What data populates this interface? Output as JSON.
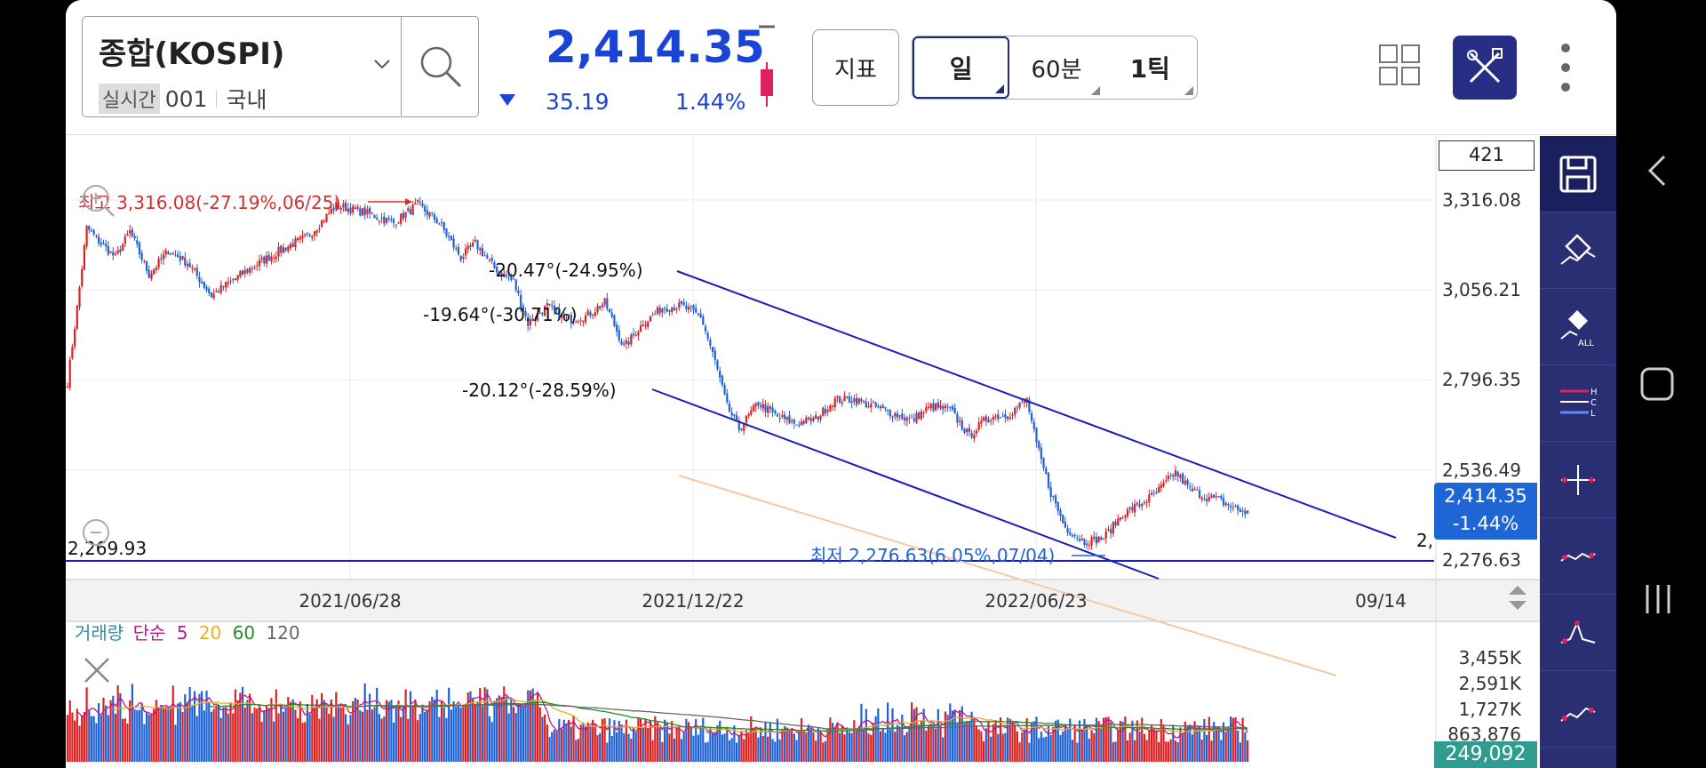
{
  "header": {
    "symbol_name": "종합(KOSPI)",
    "realtime_badge": "실시간",
    "symbol_code": "001",
    "market": "국내",
    "price": "2,414.35",
    "change": "35.19",
    "change_pct": "1.44%",
    "indicator_label": "지표",
    "periods": [
      {
        "label": "일",
        "active": true
      },
      {
        "label": "60분",
        "active": false
      },
      {
        "label": "1틱",
        "active": false
      }
    ]
  },
  "chart": {
    "count_box": "421",
    "y_ticks": [
      "3,316.08",
      "3,056.21",
      "2,796.35",
      "2,536.49",
      "2,276.63"
    ],
    "x_ticks": [
      "2021/06/28",
      "2021/12/22",
      "2022/06/23",
      "09/14"
    ],
    "current_price": "2,414.35",
    "current_change": "-1.44%",
    "high_label": "최고 3,316.08(-27.19%,06/25)",
    "low_label": "최저 2,276.63(6.05%,07/04)",
    "hline_label": "2,269.93",
    "hline_right_label": "2,",
    "angle_labels": [
      "-20.47°(-24.95%)",
      "-19.64°(-30.71%)",
      "-20.12°(-28.59%)"
    ],
    "colors": {
      "up": "#e0201f",
      "down": "#1f62d8",
      "channel": "#1b1fb8",
      "mid": "#f6c9a5"
    }
  },
  "volume": {
    "title": "거래량",
    "mode": "단순",
    "ma_periods": [
      "5",
      "20",
      "60",
      "120"
    ],
    "ma_colors": [
      "#c2188c",
      "#e2b020",
      "#238c2e",
      "#666666"
    ],
    "y_ticks": [
      "3,455K",
      "2,591K",
      "1,727K",
      "863,876"
    ],
    "current": "249,092"
  },
  "chart_data": {
    "type": "candlestick",
    "x_ticks": [
      "2021/06/28",
      "2021/12/22",
      "2022/06/23",
      "09/14"
    ],
    "y_ticks": [
      3316.08,
      3056.21,
      2796.35,
      2536.49,
      2276.63
    ],
    "high": {
      "value": 3316.08,
      "pct": -27.19,
      "date": "06/25"
    },
    "low": {
      "value": 2276.63,
      "pct": 6.05,
      "date": "07/04"
    },
    "last_close": 2414.35,
    "last_change_pct": -1.44,
    "horizontal_line": 2269.93,
    "path": [
      [
        0,
        2790
      ],
      [
        4,
        3005
      ],
      [
        8,
        3236
      ],
      [
        14,
        3190
      ],
      [
        20,
        3150
      ],
      [
        26,
        3225
      ],
      [
        34,
        3100
      ],
      [
        42,
        3170
      ],
      [
        50,
        3135
      ],
      [
        60,
        3040
      ],
      [
        70,
        3090
      ],
      [
        80,
        3135
      ],
      [
        90,
        3176
      ],
      [
        100,
        3210
      ],
      [
        112,
        3300
      ],
      [
        124,
        3280
      ],
      [
        136,
        3250
      ],
      [
        146,
        3303
      ],
      [
        155,
        3250
      ],
      [
        164,
        3150
      ],
      [
        170,
        3190
      ],
      [
        178,
        3120
      ],
      [
        186,
        3080
      ],
      [
        192,
        2960
      ],
      [
        200,
        3010
      ],
      [
        208,
        2970
      ],
      [
        216,
        2980
      ],
      [
        224,
        3020
      ],
      [
        232,
        2890
      ],
      [
        240,
        2960
      ],
      [
        248,
        3005
      ],
      [
        256,
        3010
      ],
      [
        264,
        2980
      ],
      [
        270,
        2850
      ],
      [
        275,
        2720
      ],
      [
        280,
        2655
      ],
      [
        288,
        2730
      ],
      [
        296,
        2690
      ],
      [
        304,
        2670
      ],
      [
        312,
        2685
      ],
      [
        320,
        2740
      ],
      [
        328,
        2740
      ],
      [
        336,
        2720
      ],
      [
        344,
        2700
      ],
      [
        352,
        2680
      ],
      [
        360,
        2720
      ],
      [
        368,
        2710
      ],
      [
        376,
        2635
      ],
      [
        384,
        2690
      ],
      [
        392,
        2695
      ],
      [
        400,
        2740
      ],
      [
        404,
        2610
      ],
      [
        410,
        2470
      ],
      [
        416,
        2370
      ],
      [
        424,
        2330
      ],
      [
        432,
        2340
      ],
      [
        440,
        2410
      ],
      [
        448,
        2440
      ],
      [
        454,
        2470
      ],
      [
        462,
        2530
      ],
      [
        468,
        2480
      ],
      [
        474,
        2460
      ],
      [
        480,
        2450
      ],
      [
        488,
        2420
      ],
      [
        492,
        2414
      ]
    ],
    "channel_lines": [
      {
        "label": "-20.47°(-24.95%)",
        "from": [
          256,
          3052
        ],
        "to": [
          616,
          2415
        ]
      },
      {
        "label": "-19.64°(-30.71%)",
        "from": [
          234,
          2908
        ],
        "to": [
          562,
          2259
        ]
      },
      {
        "label": "-20.12°(-28.59%)",
        "from": [
          245,
          2785
        ],
        "to": [
          440,
          2263
        ]
      }
    ],
    "volume": {
      "y_ticks": [
        "3,455K",
        "2,591K",
        "1,727K",
        "863,876"
      ],
      "current": 249092,
      "ma_periods": [
        5,
        20,
        60,
        120
      ]
    }
  }
}
